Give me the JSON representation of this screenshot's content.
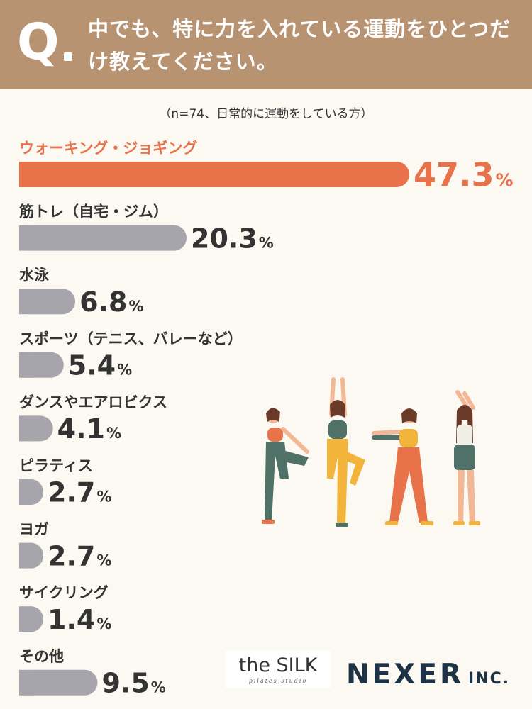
{
  "header": {
    "q_mark": "Q",
    "question": "中でも、特に力を入れている運動をひとつだけ教えてください。"
  },
  "sample_note": "（n=74、日常的に運動をしている方）",
  "chart_data": {
    "type": "bar",
    "orientation": "horizontal",
    "categories": [
      "ウォーキング・ジョギング",
      "筋トレ（自宅・ジム）",
      "水泳",
      "スポーツ（テニス、バレーなど）",
      "ダンスやエアロビクス",
      "ピラティス",
      "ヨガ",
      "サイクリング",
      "その他"
    ],
    "values": [
      47.3,
      20.3,
      6.8,
      5.4,
      4.1,
      2.7,
      2.7,
      1.4,
      9.5
    ],
    "unit": "%",
    "highlight_index": 0,
    "colors": {
      "highlight": "#e8734a",
      "default": "#a5a5ab"
    }
  },
  "logos": {
    "silk_main": "the SILK",
    "silk_sub": "pilates studio",
    "nexer_main": "NEXER",
    "nexer_suffix": "INC."
  },
  "illustration": "women-exercising-illustration"
}
